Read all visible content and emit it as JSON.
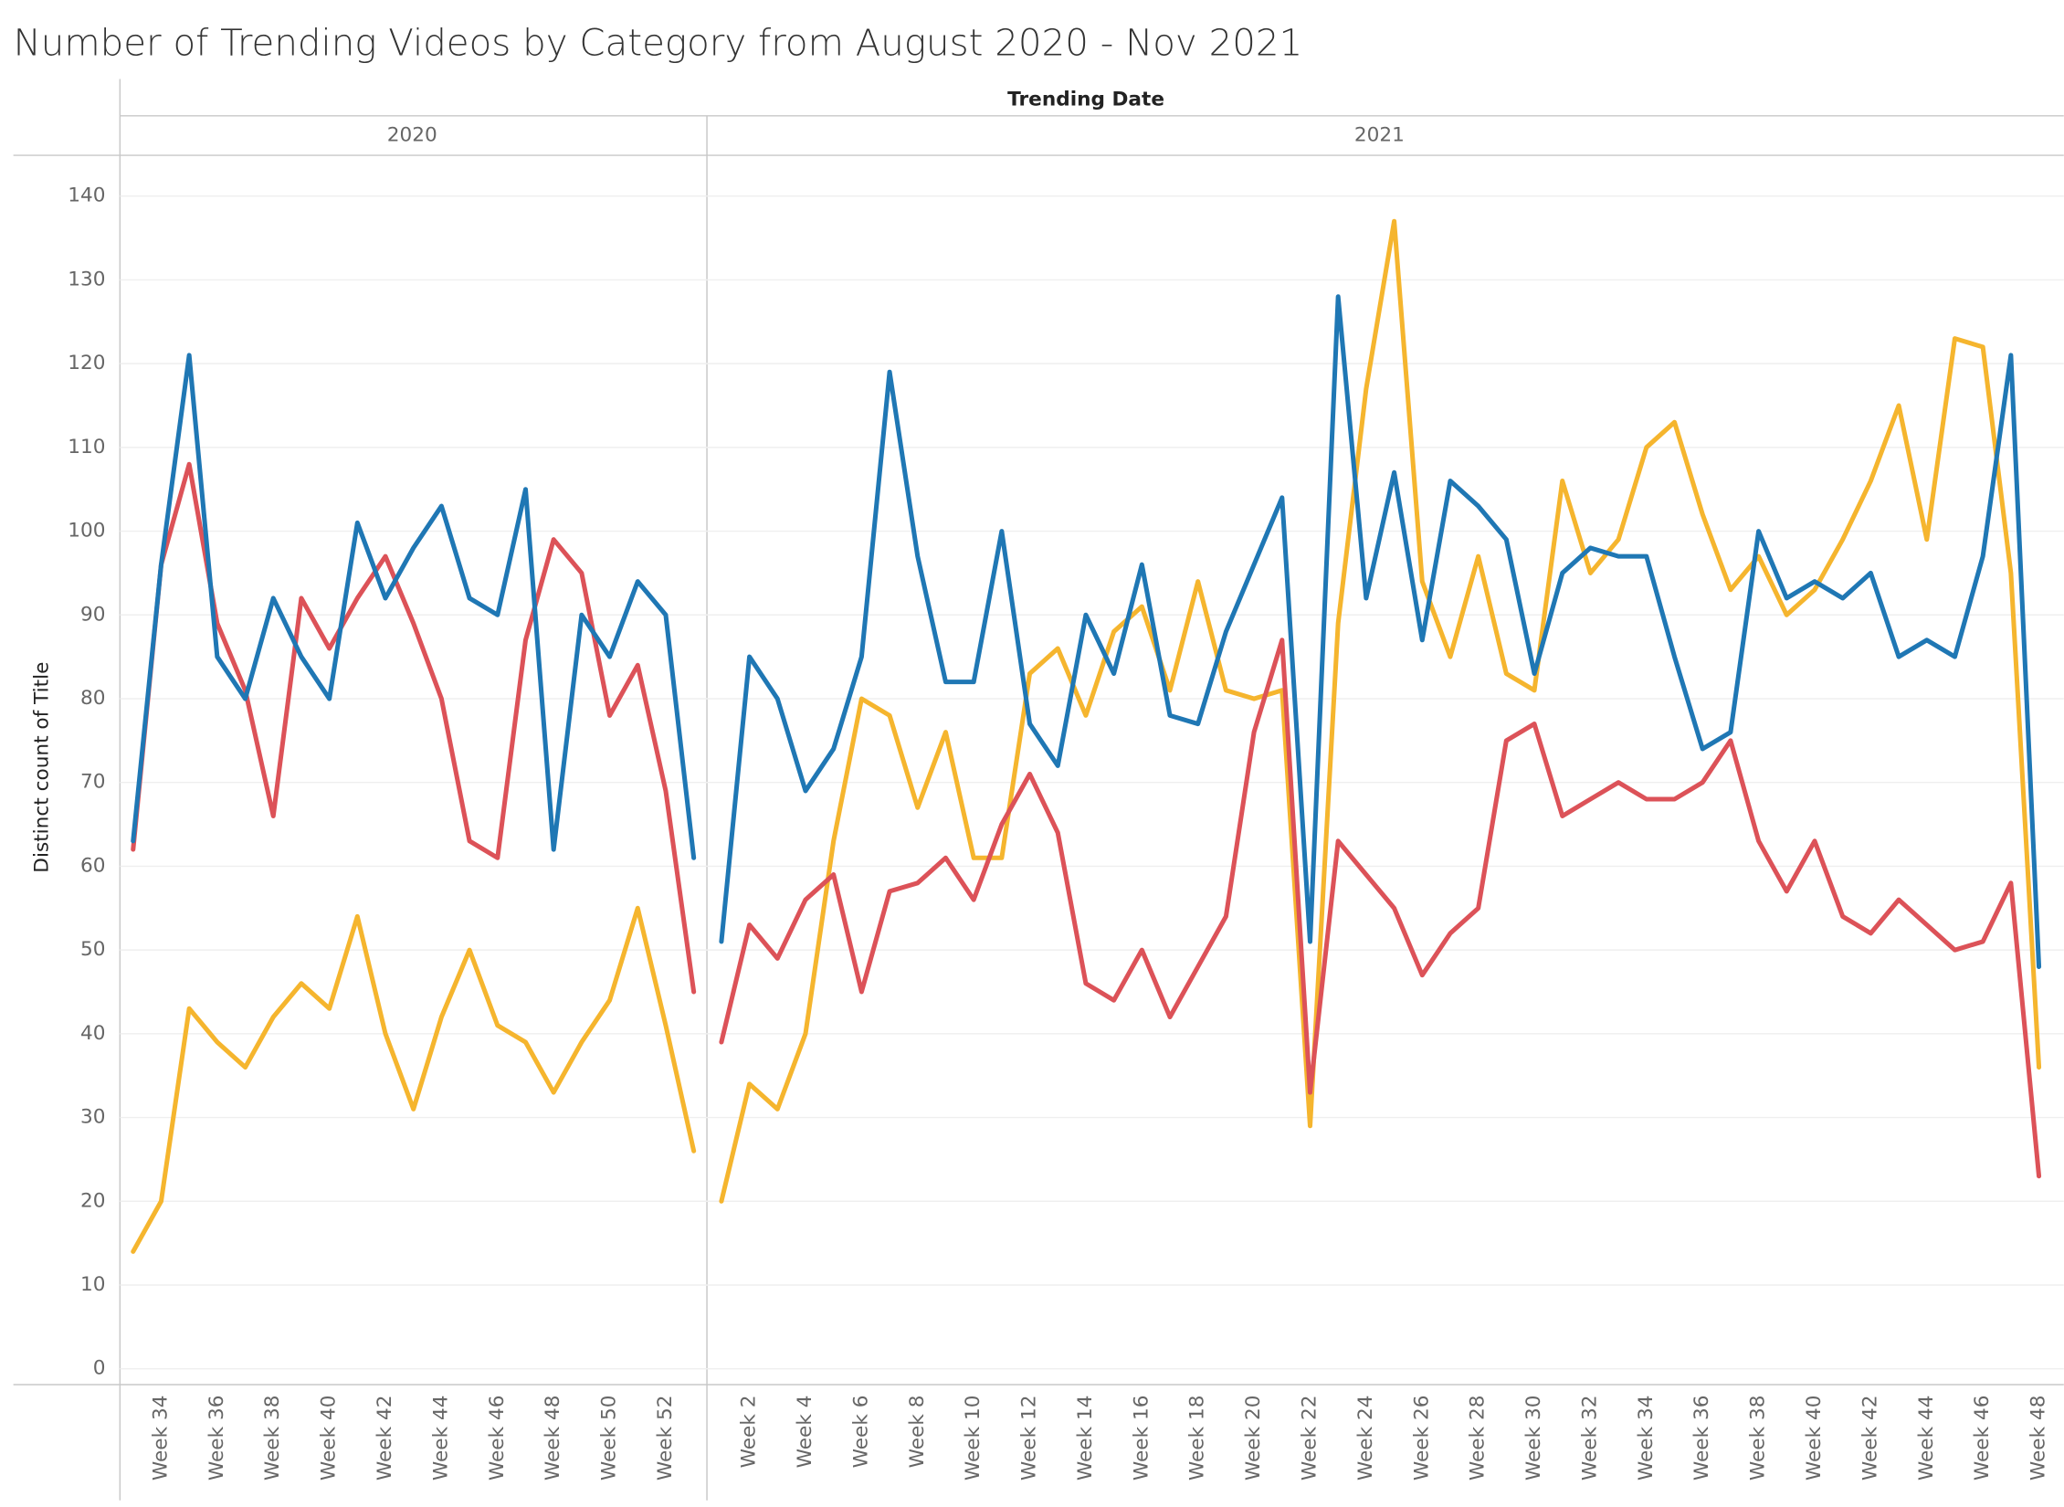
{
  "chart_data": {
    "type": "line",
    "title": "Number of Trending Videos by Category from August 2020 - Nov 2021",
    "header": "Trending Date",
    "y_label": "Distinct count of Title",
    "ylim": [
      0,
      140
    ],
    "yticks": [
      0,
      10,
      20,
      30,
      40,
      50,
      60,
      70,
      80,
      90,
      100,
      110,
      120,
      130,
      140
    ],
    "grid": true,
    "panes": [
      {
        "label": "2020",
        "categories": [
          null,
          "Week 34",
          null,
          "Week 36",
          null,
          "Week 38",
          null,
          "Week 40",
          null,
          "Week 42",
          null,
          "Week 44",
          null,
          "Week 46",
          null,
          "Week 48",
          null,
          "Week 50",
          null,
          "Week 52",
          null
        ],
        "series": [
          {
            "color": "#f5b52e",
            "values": [
              14,
              20,
              43,
              39,
              36,
              42,
              46,
              43,
              54,
              40,
              31,
              42,
              50,
              41,
              39,
              33,
              39,
              44,
              55,
              41,
              26
            ]
          },
          {
            "color": "#dc5258",
            "values": [
              62,
              96,
              108,
              89,
              81,
              66,
              92,
              86,
              92,
              97,
              89,
              80,
              63,
              61,
              87,
              99,
              95,
              78,
              84,
              69,
              45
            ]
          },
          {
            "color": "#1f77b4",
            "values": [
              63,
              96,
              121,
              85,
              80,
              92,
              85,
              80,
              101,
              92,
              98,
              103,
              92,
              90,
              105,
              62,
              90,
              85,
              94,
              90,
              61
            ]
          }
        ]
      },
      {
        "label": "2021",
        "categories": [
          null,
          "Week 2",
          null,
          "Week 4",
          null,
          "Week 6",
          null,
          "Week 8",
          null,
          "Week 10",
          null,
          "Week 12",
          null,
          "Week 14",
          null,
          "Week 16",
          null,
          "Week 18",
          null,
          "Week 20",
          null,
          "Week 22",
          null,
          "Week 24",
          null,
          "Week 26",
          null,
          "Week 28",
          null,
          "Week 30",
          null,
          "Week 32",
          null,
          "Week 34",
          null,
          "Week 36",
          null,
          "Week 38",
          null,
          "Week 40",
          null,
          "Week 42",
          null,
          "Week 44",
          null,
          "Week 46",
          null,
          "Week 48"
        ],
        "series": [
          {
            "color": "#f5b52e",
            "values": [
              20,
              34,
              31,
              40,
              63,
              80,
              78,
              67,
              76,
              61,
              61,
              83,
              86,
              78,
              88,
              91,
              81,
              94,
              81,
              80,
              81,
              29,
              89,
              117,
              137,
              94,
              85,
              97,
              83,
              81,
              106,
              95,
              99,
              110,
              113,
              102,
              93,
              97,
              90,
              93,
              99,
              106,
              115,
              99,
              123,
              122,
              95,
              36
            ]
          },
          {
            "color": "#dc5258",
            "values": [
              39,
              53,
              49,
              56,
              59,
              45,
              57,
              58,
              61,
              56,
              65,
              71,
              64,
              46,
              44,
              50,
              42,
              48,
              54,
              76,
              87,
              33,
              63,
              59,
              55,
              47,
              52,
              55,
              75,
              77,
              66,
              68,
              70,
              68,
              68,
              70,
              75,
              63,
              57,
              63,
              54,
              52,
              56,
              53,
              50,
              51,
              58,
              23
            ]
          },
          {
            "color": "#1f77b4",
            "values": [
              51,
              85,
              80,
              69,
              74,
              85,
              119,
              97,
              82,
              82,
              100,
              77,
              72,
              90,
              83,
              96,
              78,
              77,
              88,
              96,
              104,
              51,
              128,
              92,
              107,
              87,
              106,
              103,
              99,
              83,
              95,
              98,
              97,
              97,
              85,
              74,
              76,
              100,
              92,
              94,
              92,
              95,
              85,
              87,
              85,
              97,
              121,
              48
            ]
          }
        ]
      }
    ]
  }
}
